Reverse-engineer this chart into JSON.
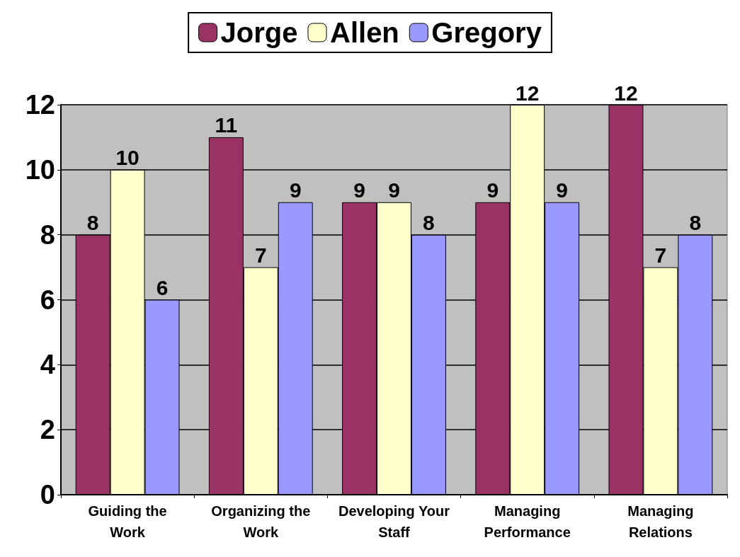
{
  "chart_data": {
    "type": "bar",
    "categories": [
      "Guiding the Work",
      "Organizing the Work",
      "Developing Your Staff",
      "Managing Performance",
      "Managing Relations"
    ],
    "series": [
      {
        "name": "Jorge",
        "color": "#993366",
        "values": [
          8,
          11,
          9,
          9,
          12
        ]
      },
      {
        "name": "Allen",
        "color": "#ffffcc",
        "values": [
          10,
          7,
          9,
          12,
          7
        ]
      },
      {
        "name": "Gregory",
        "color": "#9999ff",
        "values": [
          6,
          9,
          8,
          9,
          8
        ]
      }
    ],
    "ylim": [
      0,
      12
    ],
    "yticks": [
      0,
      2,
      4,
      6,
      8,
      10,
      12
    ],
    "grid": "y",
    "legend": "top",
    "data_labels": true
  }
}
